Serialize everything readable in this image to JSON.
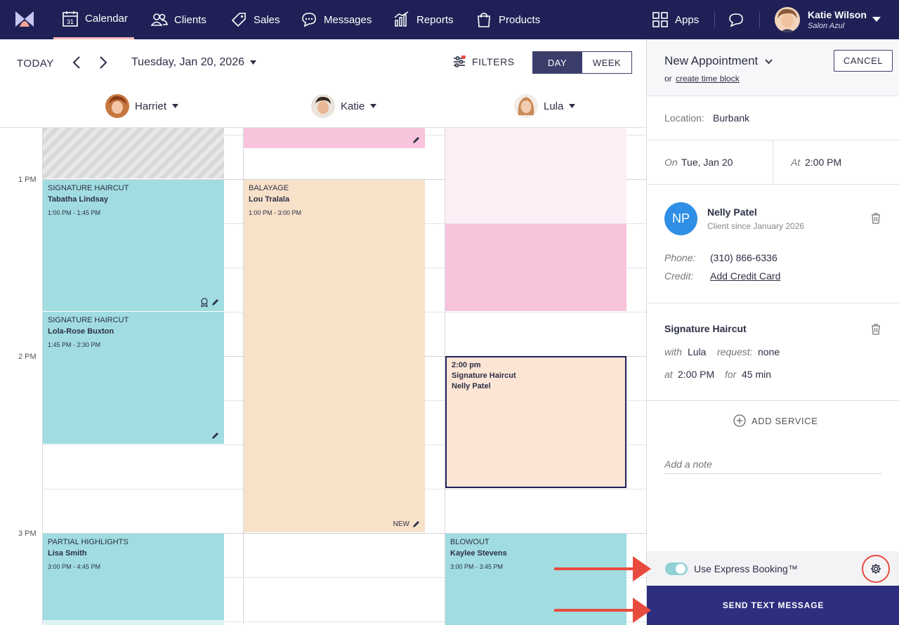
{
  "nav": {
    "items": [
      {
        "label": "Calendar",
        "icon": "calendar-icon",
        "calendar_day": "31"
      },
      {
        "label": "Clients",
        "icon": "clients-icon"
      },
      {
        "label": "Sales",
        "icon": "tag-icon"
      },
      {
        "label": "Messages",
        "icon": "chat-bubble-icon"
      },
      {
        "label": "Reports",
        "icon": "bar-chart-icon"
      },
      {
        "label": "Products",
        "icon": "shopping-bag-icon"
      }
    ],
    "apps_label": "Apps",
    "user_name": "Katie Wilson",
    "user_salon": "Salon Azul"
  },
  "toolbar": {
    "today": "TODAY",
    "date": "Tuesday, Jan 20, 2026",
    "filters": "FILTERS",
    "day": "DAY",
    "week": "WEEK"
  },
  "staff": [
    "Harriet",
    "Katie",
    "Lula"
  ],
  "times": [
    "1 PM",
    "2 PM",
    "3 PM"
  ],
  "appointments": {
    "a1": {
      "service": "SIGNATURE HAIRCUT",
      "client": "Tabatha Lindsay",
      "time": "1:00 PM - 1:45 PM"
    },
    "a2": {
      "service": "SIGNATURE HAIRCUT",
      "client": "Lola-Rose Buxton",
      "time": "1:45 PM - 2:30 PM"
    },
    "a3": {
      "service": "PARTIAL HIGHLIGHTS",
      "client": "Lisa Smith",
      "time": "3:00 PM - 4:45 PM"
    },
    "a4": {
      "service": "BALAYAGE",
      "client": "Lou Tralala",
      "time": "1:00 PM - 3:00 PM",
      "badge": "NEW"
    },
    "a5": {
      "time": "2:00 pm",
      "service": "Signature Haircut",
      "client": "Nelly Patel"
    },
    "a6": {
      "service": "BLOWOUT",
      "client": "Kaylee Stevens",
      "time": "3:00 PM - 3:45 PM"
    }
  },
  "panel": {
    "title": "New Appointment",
    "or_text": "or",
    "time_block_link": "create time block",
    "cancel": "CANCEL",
    "location_label": "Location:",
    "location": "Burbank",
    "on_label": "On",
    "on_value": "Tue, Jan 20",
    "at_label": "At",
    "at_value": "2:00 PM",
    "client": {
      "initials": "NP",
      "name": "Nelly Patel",
      "since": "Client since January 2026",
      "phone_label": "Phone:",
      "phone": "(310) 866-6336",
      "credit_label": "Credit:",
      "credit_link": "Add Credit Card"
    },
    "service": {
      "name": "Signature Haircut",
      "with_label": "with",
      "with_value": "Lula",
      "request_label": "request:",
      "request_value": "none",
      "at_label": "at",
      "at_value": "2:00 PM",
      "for_label": "for",
      "for_value": "45 min"
    },
    "add_service": "ADD SERVICE",
    "note_placeholder": "Add a note",
    "express_label": "Use Express Booking™",
    "express_on": true,
    "send": "SEND TEXT MESSAGE"
  },
  "colors": {
    "nav_bg": "#1f2156",
    "accent": "#2d2e7f",
    "teal": "#a1dde0",
    "peach": "#f8e1c9",
    "pink": "#f8c4dc",
    "annotation_red": "#e94a3e"
  }
}
